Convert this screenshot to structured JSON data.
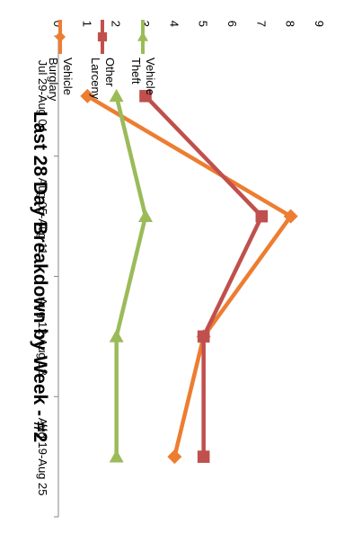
{
  "chart_data": {
    "type": "line",
    "title": "Last 28 Day Breakdown by Week - #2",
    "xlabel": "",
    "ylabel": "",
    "categories": [
      "Jul 29-Aug 04",
      "Aug 05-Aug 11",
      "Aug 12-Aug 18",
      "Aug 19-Aug 25"
    ],
    "ylim": [
      0,
      9
    ],
    "yticks": [
      0,
      1,
      2,
      3,
      4,
      5,
      6,
      7,
      8,
      9
    ],
    "grid": false,
    "legend_position": "top-right",
    "series": [
      {
        "name": "Vehicle Burglary",
        "legend_lines": [
          "Vehicle",
          "Burglary"
        ],
        "marker": "diamond",
        "color": "#ed7d31",
        "values": [
          1,
          8,
          5,
          4
        ]
      },
      {
        "name": "Other Larceny",
        "legend_lines": [
          "Other",
          "Larceny"
        ],
        "marker": "square",
        "color": "#c0504d",
        "values": [
          3,
          7,
          5,
          5
        ]
      },
      {
        "name": "Vehicle Theft",
        "legend_lines": [
          "Vehicle",
          "Theft"
        ],
        "marker": "triangle",
        "color": "#9bbb59",
        "values": [
          2,
          3,
          2,
          2
        ]
      }
    ]
  }
}
